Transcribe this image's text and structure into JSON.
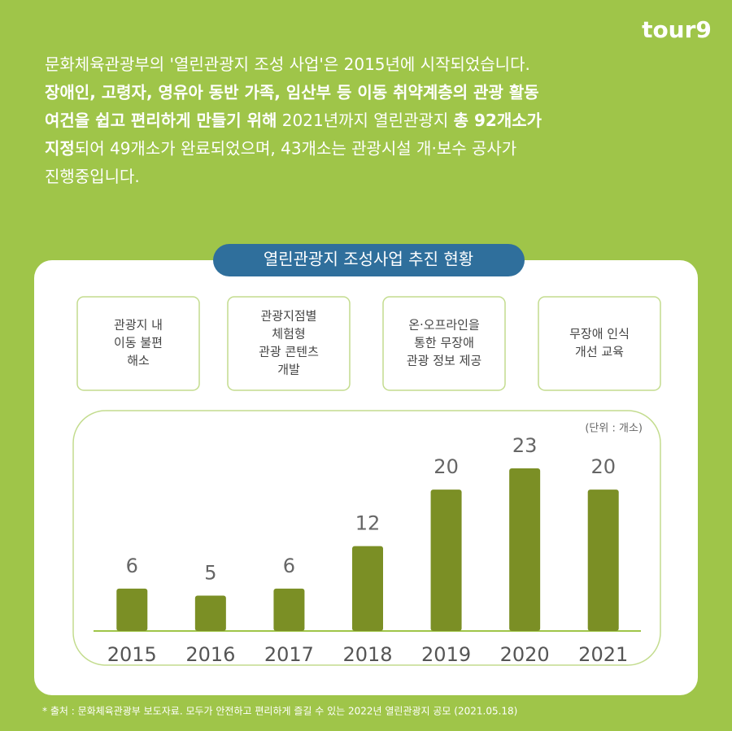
{
  "logo": "tour9",
  "intro": [
    [
      {
        "text": "문화체육관광부의 '열린관광지 조성 사업'은 2015년에 시작되었습니다.",
        "bold": false
      }
    ],
    [
      {
        "text": "장애인, 고령자, 영유아 동반 가족, 임산부 등 이동 취약계층의 관광 활동",
        "bold": true
      }
    ],
    [
      {
        "text": "여건을 쉽고 편리하게 만들기 위해",
        "bold": true
      },
      {
        "text": " 2021년까지 열린관광지 ",
        "bold": false
      },
      {
        "text": "총 92개소가",
        "bold": true
      }
    ],
    [
      {
        "text": "지정",
        "bold": true
      },
      {
        "text": "되어 49개소가 완료되었으며, 43개소는 관광시설 개·보수 공사가",
        "bold": false
      }
    ],
    [
      {
        "text": "진행중입니다.",
        "bold": false
      }
    ]
  ],
  "section_title": "열린관광지 조성사업 추진 현황",
  "boxes": [
    [
      "관광지 내",
      "이동 불편",
      "해소"
    ],
    [
      "관광지점별",
      "체험형",
      "관광 콘텐츠",
      "개발"
    ],
    [
      "온·오프라인을",
      "통한 무장애",
      "관광 정보 제공"
    ],
    [
      "무장애 인식",
      "개선 교육"
    ]
  ],
  "chart_data": {
    "type": "bar",
    "unit_label": "(단위 : 개소)",
    "categories": [
      "2015",
      "2016",
      "2017",
      "2018",
      "2019",
      "2020",
      "2021"
    ],
    "values": [
      6,
      5,
      6,
      12,
      20,
      23,
      20
    ],
    "color": "#7b8f25"
  },
  "source": "* 출처 : 문화체육관광부 보도자료. 모두가 안전하고 편리하게 즐길 수 있는 2022년 열린관광지 공모 (2021.05.18)"
}
